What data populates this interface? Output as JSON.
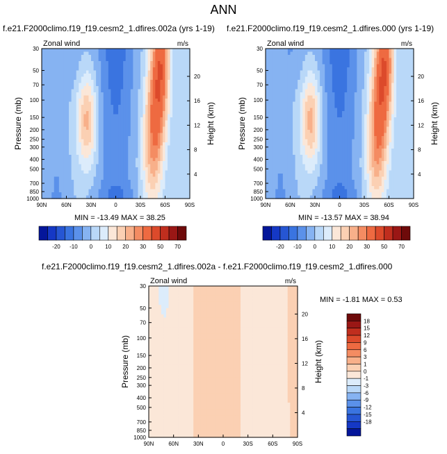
{
  "figure_title": "ANN",
  "colors": {
    "background": "#ffffff",
    "axis": "#000000"
  },
  "chart_data": [
    {
      "type": "heatmap",
      "title": "f.e21.F2000climo.f19_f19.cesm2_1.dfires.002a (yrs 1-19)",
      "left_label": "Zonal wind",
      "right_label": "m/s",
      "xlabel": "",
      "ylabel": "Pressure (mb)",
      "ylabel_right": "Height (km)",
      "x_ticks": [
        "90N",
        "60N",
        "30N",
        "0",
        "30S",
        "60S",
        "90S"
      ],
      "y_ticks": [
        30,
        50,
        70,
        100,
        150,
        200,
        250,
        300,
        400,
        500,
        700,
        850,
        1000
      ],
      "y_right_ticks": [
        20,
        16,
        12,
        8,
        4
      ],
      "ylim": [
        1000,
        30
      ],
      "min_max_text": "MIN = -13.49   MAX = 38.25",
      "min": -13.49,
      "max": 38.25,
      "colorbar_levels": [
        -25,
        -20,
        -15,
        -10,
        -5,
        0,
        5,
        10,
        15,
        20,
        25,
        30,
        40,
        50,
        60,
        70
      ],
      "colorbar_labels": [
        "-20",
        "-10",
        "0",
        "10",
        "20",
        "30",
        "50",
        "70"
      ],
      "colorbar_colors": [
        "#04169a",
        "#1538c5",
        "#2656d3",
        "#3a74e0",
        "#5b91ea",
        "#86b3f2",
        "#b9d8f8",
        "#dcecfb",
        "#fbe7d8",
        "#fbd0b3",
        "#f8b08a",
        "#f48c62",
        "#ee6a41",
        "#dc4a2b",
        "#c02e1e",
        "#9a1715",
        "#6e0a0a"
      ]
    },
    {
      "type": "heatmap",
      "title": "f.e21.F2000climo.f19_f19.cesm2_1.dfires.000 (yrs 1-19)",
      "left_label": "Zonal wind",
      "right_label": "m/s",
      "xlabel": "",
      "ylabel": "Pressure (mb)",
      "ylabel_right": "Height (km)",
      "x_ticks": [
        "90N",
        "60N",
        "30N",
        "0",
        "30S",
        "60S",
        "90S"
      ],
      "y_ticks": [
        30,
        50,
        70,
        100,
        150,
        200,
        250,
        300,
        400,
        500,
        700,
        850,
        1000
      ],
      "y_right_ticks": [
        20,
        16,
        12,
        8,
        4
      ],
      "ylim": [
        1000,
        30
      ],
      "min_max_text": "MIN = -13.57   MAX = 38.94",
      "min": -13.57,
      "max": 38.94,
      "colorbar_levels": [
        -25,
        -20,
        -15,
        -10,
        -5,
        0,
        5,
        10,
        15,
        20,
        25,
        30,
        40,
        50,
        60,
        70
      ],
      "colorbar_labels": [
        "-20",
        "-10",
        "0",
        "10",
        "20",
        "30",
        "50",
        "70"
      ],
      "colorbar_colors": [
        "#04169a",
        "#1538c5",
        "#2656d3",
        "#3a74e0",
        "#5b91ea",
        "#86b3f2",
        "#b9d8f8",
        "#dcecfb",
        "#fbe7d8",
        "#fbd0b3",
        "#f8b08a",
        "#f48c62",
        "#ee6a41",
        "#dc4a2b",
        "#c02e1e",
        "#9a1715",
        "#6e0a0a"
      ]
    },
    {
      "type": "heatmap",
      "title": "f.e21.F2000climo.f19_f19.cesm2_1.dfires.002a - f.e21.F2000climo.f19_f19.cesm2_1.dfires.000",
      "left_label": "Zonal wind",
      "right_label": "m/s",
      "xlabel": "",
      "ylabel": "Pressure (mb)",
      "ylabel_right": "Height (km)",
      "x_ticks": [
        "90N",
        "60N",
        "30N",
        "0",
        "30S",
        "60S",
        "90S"
      ],
      "y_ticks": [
        30,
        50,
        70,
        100,
        150,
        200,
        250,
        300,
        400,
        500,
        700,
        850,
        1000
      ],
      "y_right_ticks": [
        20,
        16,
        12,
        8,
        4
      ],
      "ylim": [
        1000,
        30
      ],
      "min_max_text": "MIN = -1.81   MAX =  0.53",
      "min": -1.81,
      "max": 0.53,
      "colorbar_levels": [
        -21,
        -18,
        -15,
        -12,
        -9,
        -6,
        -3,
        -1,
        0,
        1,
        3,
        6,
        9,
        12,
        15,
        18
      ],
      "colorbar_labels": [
        "18",
        "15",
        "12",
        "9",
        "6",
        "3",
        "1",
        "0",
        "-1",
        "-3",
        "-6",
        "-9",
        "-12",
        "-15",
        "-18"
      ],
      "colorbar_colors": [
        "#04169a",
        "#1538c5",
        "#2656d3",
        "#3a74e0",
        "#5b91ea",
        "#86b3f2",
        "#b9d8f8",
        "#dcecfb",
        "#fbe7d8",
        "#fbd0b3",
        "#f8b08a",
        "#f48c62",
        "#ee6a41",
        "#dc4a2b",
        "#c02e1e",
        "#9a1715",
        "#6e0a0a"
      ]
    }
  ]
}
